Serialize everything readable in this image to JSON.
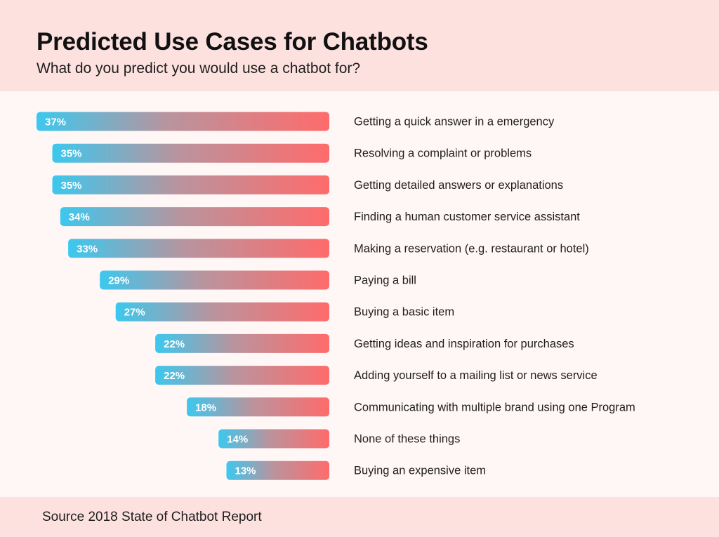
{
  "title": "Predicted Use Cases for Chatbots",
  "subtitle": "What do you predict you would use a chatbot for?",
  "source": "Source 2018 State of Chatbot Report",
  "colors": {
    "gradient_start": "#3cc8ee",
    "gradient_end": "#ff6b6b",
    "header_bg": "#fde1df",
    "page_bg": "#fff6f6"
  },
  "chart_data": {
    "type": "bar",
    "orientation": "horizontal",
    "categories": [
      "Getting a quick answer in a emergency",
      "Resolving a complaint or problems",
      "Getting detailed answers or explanations",
      "Finding a human customer service assistant",
      "Making a reservation (e.g. restaurant or hotel)",
      "Paying a bill",
      "Buying a basic item",
      "Getting ideas and inspiration for purchases",
      "Adding yourself to a mailing list or news service",
      "Communicating with multiple brand using one Program",
      "None of these things",
      "Buying an expensive item"
    ],
    "values": [
      37,
      35,
      35,
      34,
      33,
      29,
      27,
      22,
      22,
      18,
      14,
      13
    ],
    "value_labels": [
      "37%",
      "35%",
      "35%",
      "34%",
      "33%",
      "29%",
      "27%",
      "22%",
      "22%",
      "18%",
      "14%",
      "13%"
    ],
    "unit": "%",
    "grid": false,
    "legend": "none"
  }
}
